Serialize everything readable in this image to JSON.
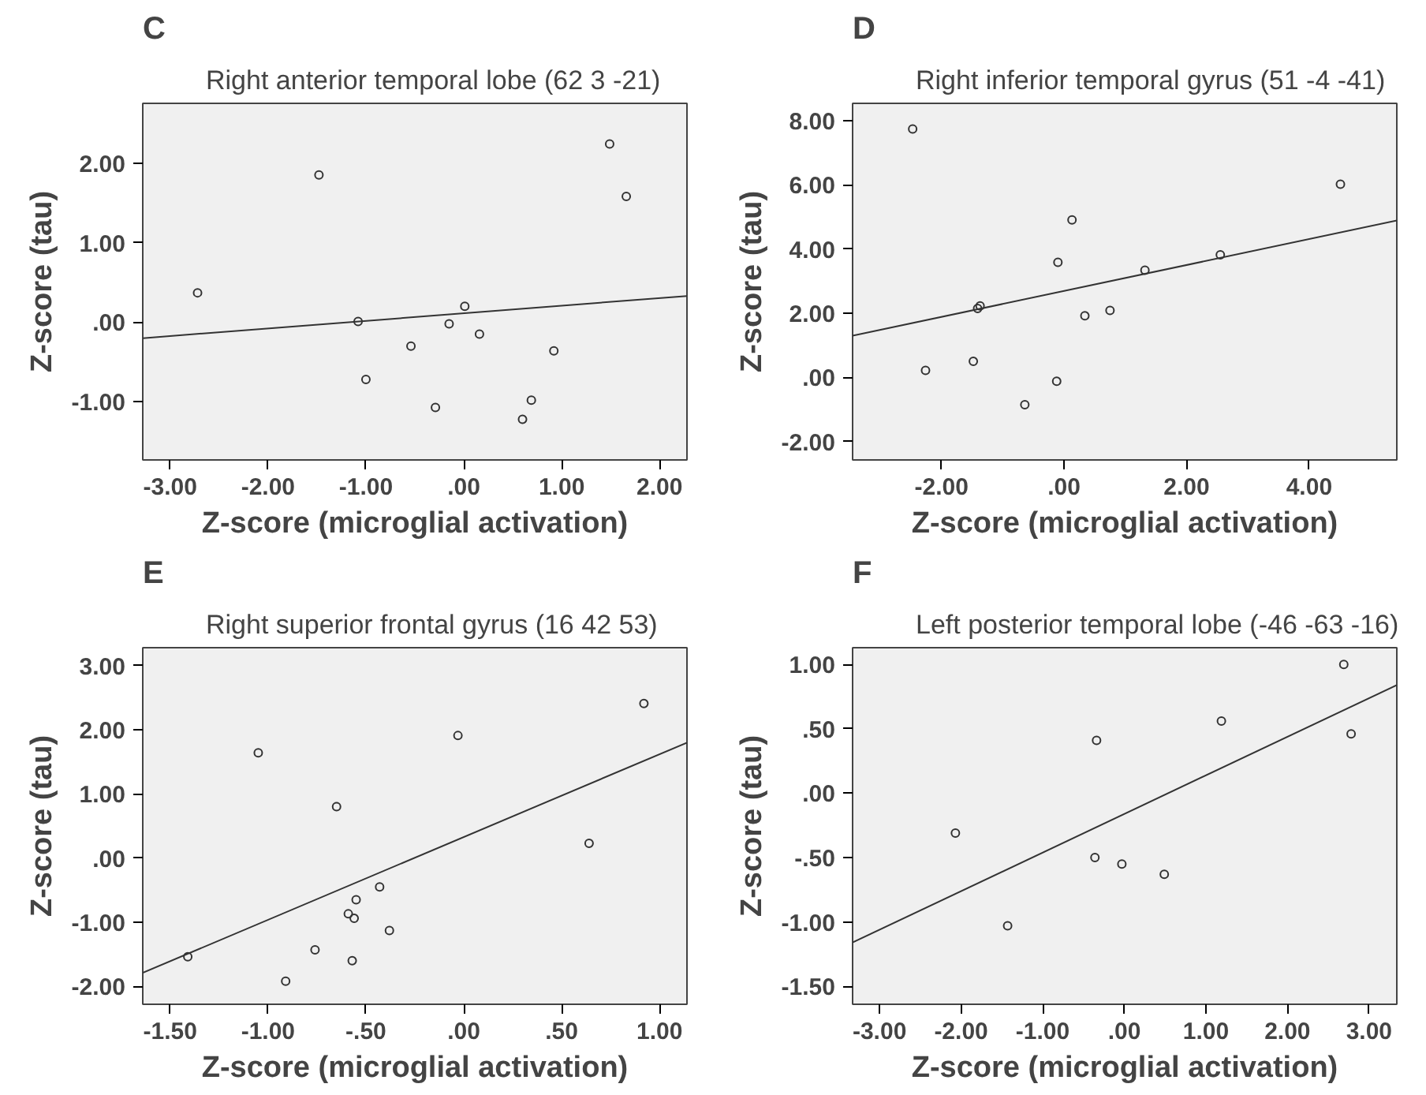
{
  "chart_data": [
    {
      "type": "scatter",
      "title": "Right anterior temporal lobe (62 3 -21)",
      "annotations": [
        "C"
      ],
      "xlabel": "Z-score (microglial activation)",
      "ylabel": "Z-score (tau)",
      "xlim": [
        -3.28,
        2.28
      ],
      "ylim": [
        -1.73,
        2.75
      ],
      "xticks": [
        {
          "value": -3,
          "label": "-3.00"
        },
        {
          "value": -2,
          "label": "-2.00"
        },
        {
          "value": -1,
          "label": "-1.00"
        },
        {
          "value": 0,
          "label": ".00"
        },
        {
          "value": 1,
          "label": "1.00"
        },
        {
          "value": 2,
          "label": "2.00"
        }
      ],
      "yticks": [
        {
          "value": -1,
          "label": "-1.00"
        },
        {
          "value": 0,
          "label": ".00"
        },
        {
          "value": 1,
          "label": "1.00"
        },
        {
          "value": 2,
          "label": "2.00"
        }
      ],
      "series": [
        {
          "marker": "circle",
          "color": "#333333",
          "x": [
            -2.72,
            -1.48,
            -1.08,
            -1.0,
            -0.54,
            -0.29,
            -0.15,
            0.01,
            0.16,
            0.6,
            0.69,
            0.92,
            1.49,
            1.66
          ],
          "values": [
            0.37,
            1.85,
            0.01,
            -0.72,
            -0.3,
            -1.07,
            -0.02,
            0.2,
            -0.15,
            -1.22,
            -0.98,
            -0.36,
            2.24,
            1.58
          ]
        },
        {
          "type": "line",
          "color": "#333333",
          "x": [
            -3.28,
            2.28
          ],
          "values": [
            -0.2,
            0.33
          ]
        }
      ]
    },
    {
      "type": "scatter",
      "title": "Right inferior temporal gyrus (51 -4 -41)",
      "annotations": [
        "D"
      ],
      "xlabel": "Z-score (microglial activation)",
      "ylabel": "Z-score (tau)",
      "xlim": [
        -3.45,
        5.43
      ],
      "ylim": [
        -2.57,
        8.54
      ],
      "xticks": [
        {
          "value": -2,
          "label": "-2.00"
        },
        {
          "value": 0,
          "label": ".00"
        },
        {
          "value": 2,
          "label": "2.00"
        },
        {
          "value": 4,
          "label": "4.00"
        }
      ],
      "yticks": [
        {
          "value": -2,
          "label": "-2.00"
        },
        {
          "value": 0,
          "label": ".00"
        },
        {
          "value": 2,
          "label": "2.00"
        },
        {
          "value": 4,
          "label": "4.00"
        },
        {
          "value": 6,
          "label": "6.00"
        },
        {
          "value": 8,
          "label": "8.00"
        }
      ],
      "series": [
        {
          "marker": "circle",
          "color": "#333333",
          "x": [
            -2.47,
            -2.26,
            -1.48,
            -1.41,
            -1.37,
            -0.64,
            -0.12,
            -0.1,
            0.13,
            0.34,
            0.75,
            1.32,
            2.55,
            4.51
          ],
          "values": [
            7.74,
            0.22,
            0.5,
            2.15,
            2.23,
            -0.85,
            -0.12,
            3.59,
            4.91,
            1.92,
            2.09,
            3.34,
            3.82,
            6.02
          ]
        },
        {
          "type": "line",
          "color": "#333333",
          "x": [
            -3.45,
            5.43
          ],
          "values": [
            1.3,
            4.89
          ]
        }
      ]
    },
    {
      "type": "scatter",
      "title": "Right superior frontal gyrus (16 42 53)",
      "annotations": [
        "E"
      ],
      "xlabel": "Z-score (microglial activation)",
      "ylabel": "Z-score (tau)",
      "xlim": [
        -1.64,
        1.14
      ],
      "ylim": [
        -2.28,
        3.28
      ],
      "xticks": [
        {
          "value": -1.5,
          "label": "-1.50"
        },
        {
          "value": -1,
          "label": "-1.00"
        },
        {
          "value": -0.5,
          "label": "-.50"
        },
        {
          "value": 0,
          "label": ".00"
        },
        {
          "value": 0.5,
          "label": ".50"
        },
        {
          "value": 1,
          "label": "1.00"
        }
      ],
      "yticks": [
        {
          "value": -2,
          "label": "-2.00"
        },
        {
          "value": -1,
          "label": "-1.00"
        },
        {
          "value": 0,
          "label": ".00"
        },
        {
          "value": 1,
          "label": "1.00"
        },
        {
          "value": 2,
          "label": "2.00"
        },
        {
          "value": 3,
          "label": "3.00"
        }
      ],
      "series": [
        {
          "marker": "circle",
          "color": "#333333",
          "x": [
            -1.41,
            -1.05,
            -0.91,
            -0.76,
            -0.65,
            -0.59,
            -0.57,
            -0.56,
            -0.55,
            -0.43,
            -0.38,
            -0.03,
            0.64,
            0.92
          ],
          "values": [
            -1.54,
            1.64,
            -1.92,
            -1.43,
            0.8,
            -0.87,
            -1.6,
            -0.94,
            -0.65,
            -0.45,
            -1.13,
            1.91,
            0.23,
            2.41
          ]
        },
        {
          "type": "line",
          "color": "#333333",
          "x": [
            -1.64,
            1.14
          ],
          "values": [
            -1.79,
            1.8
          ]
        }
      ]
    },
    {
      "type": "scatter",
      "title": "Left posterior temporal lobe (-46 -63 -16)",
      "annotations": [
        "F"
      ],
      "xlabel": "Z-score (microglial activation)",
      "ylabel": "Z-score (tau)",
      "xlim": [
        -3.33,
        3.34
      ],
      "ylim": [
        -1.64,
        1.13
      ],
      "xticks": [
        {
          "value": -3,
          "label": "-3.00"
        },
        {
          "value": -2,
          "label": "-2.00"
        },
        {
          "value": -1,
          "label": "-1.00"
        },
        {
          "value": 0,
          "label": ".00"
        },
        {
          "value": 1,
          "label": "1.00"
        },
        {
          "value": 2,
          "label": "2.00"
        },
        {
          "value": 3,
          "label": "3.00"
        }
      ],
      "yticks": [
        {
          "value": -1.5,
          "label": "-1.50"
        },
        {
          "value": -1,
          "label": "-1.00"
        },
        {
          "value": -0.5,
          "label": "-.50"
        },
        {
          "value": 0,
          "label": ".00"
        },
        {
          "value": 0.5,
          "label": ".50"
        },
        {
          "value": 1,
          "label": "1.00"
        }
      ],
      "series": [
        {
          "marker": "circle",
          "color": "#333333",
          "x": [
            -2.07,
            -1.43,
            -0.36,
            -0.34,
            -0.03,
            0.49,
            1.19,
            2.69,
            2.78
          ],
          "values": [
            -0.31,
            -1.03,
            -0.5,
            0.41,
            -0.55,
            -0.63,
            0.56,
            1.0,
            0.46
          ]
        },
        {
          "type": "line",
          "color": "#333333",
          "x": [
            -3.33,
            3.34
          ],
          "values": [
            -1.16,
            0.84
          ]
        }
      ]
    }
  ]
}
